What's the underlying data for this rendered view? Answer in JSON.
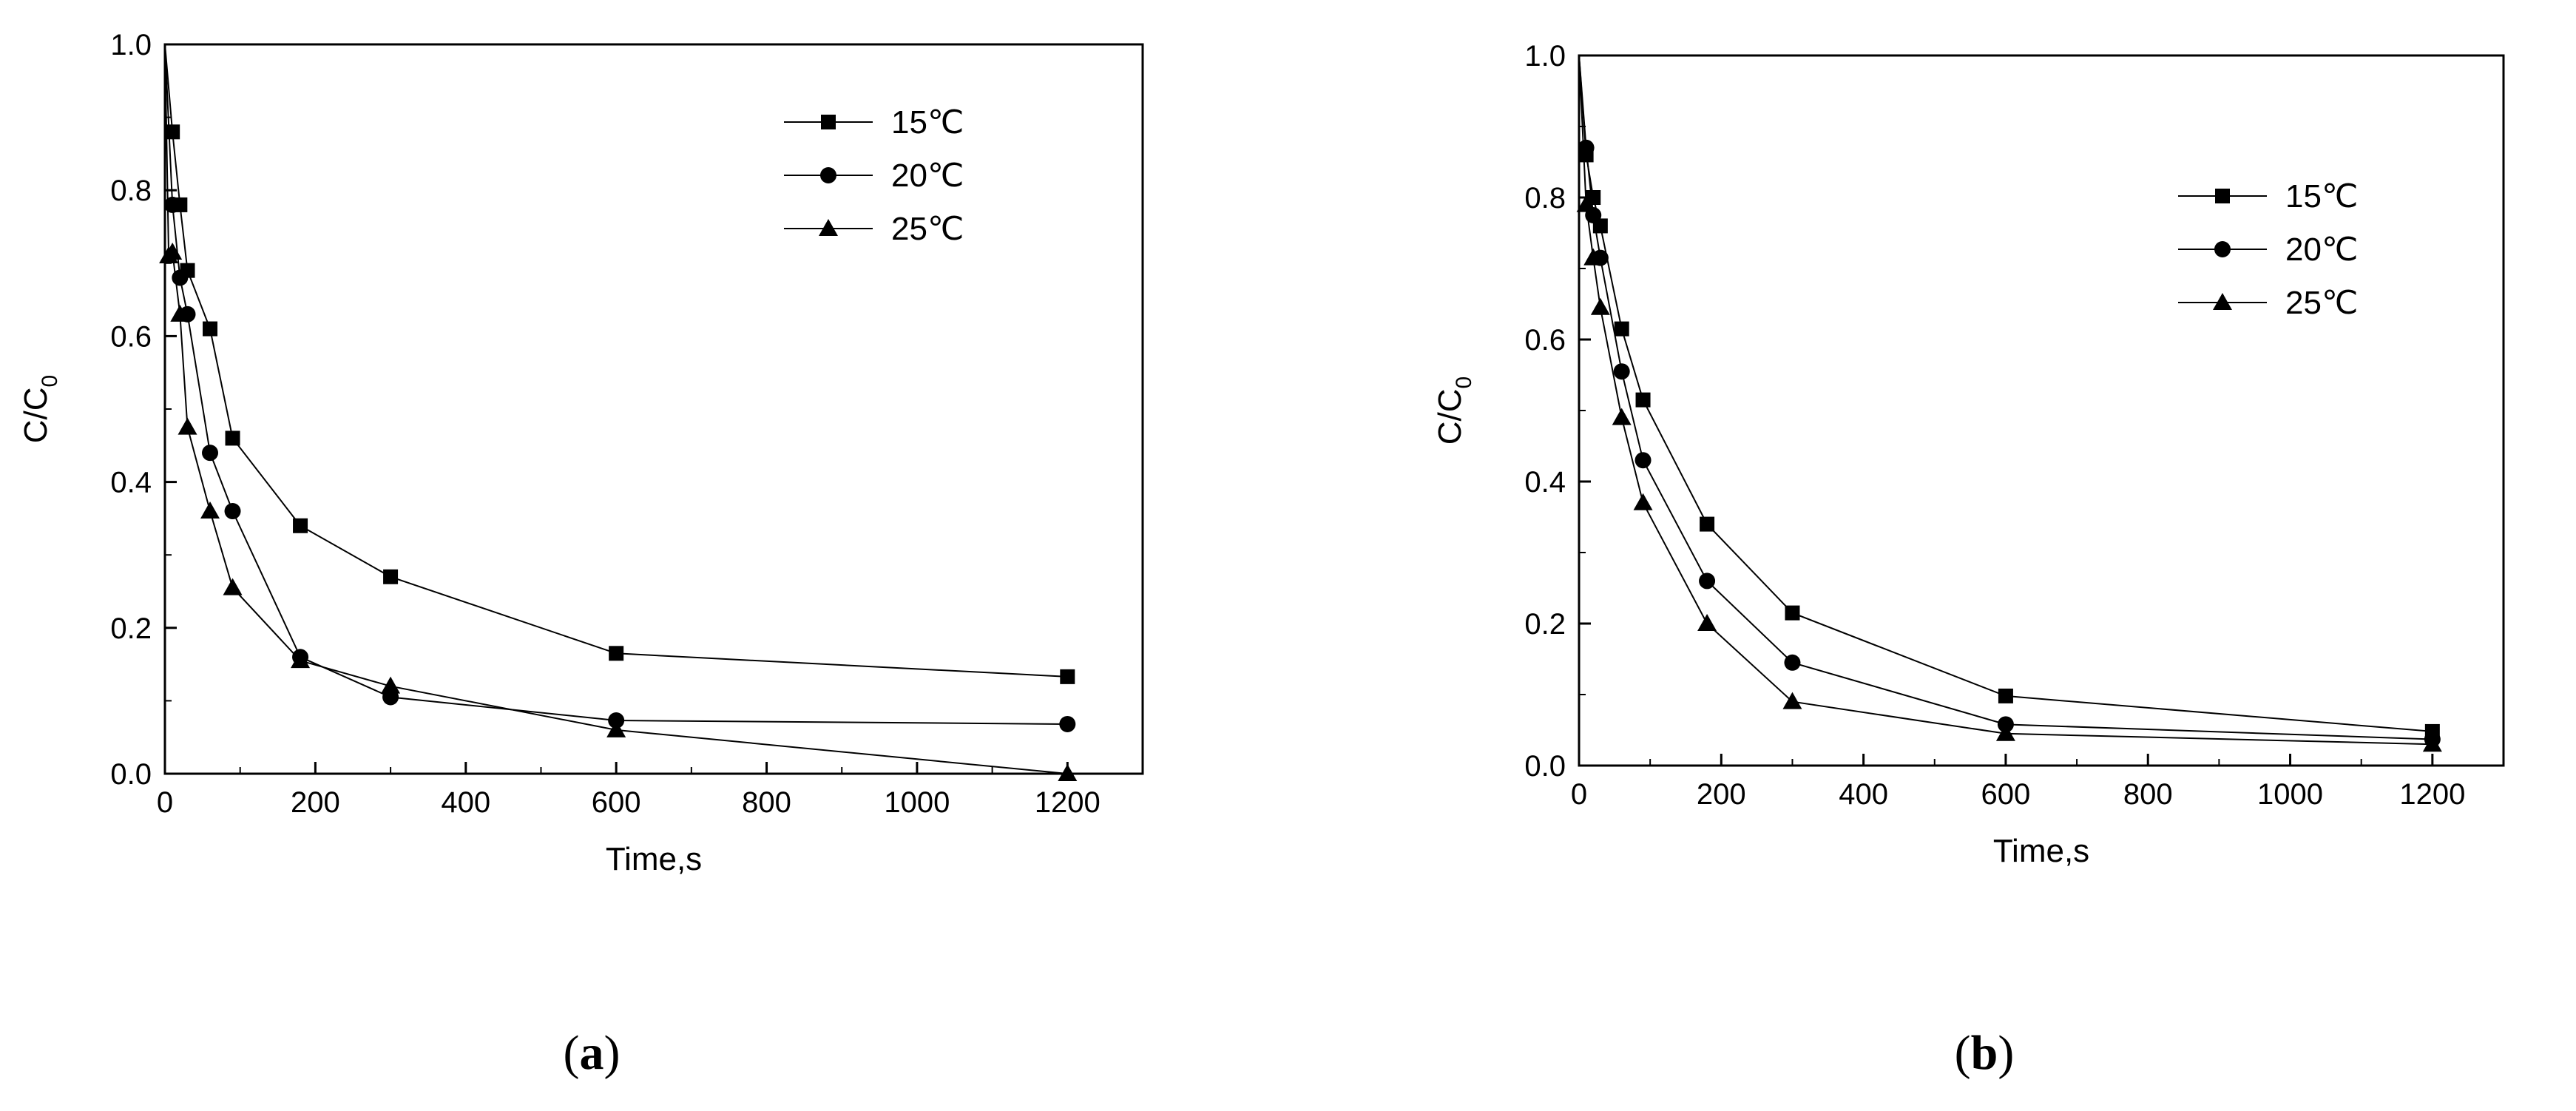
{
  "chart_data": [
    {
      "type": "line",
      "panel_label": "a",
      "xlabel": "Time,s",
      "ylabel": "C/C",
      "ylabel_subscript": "0",
      "xlim": [
        0,
        1300
      ],
      "ylim": [
        0.0,
        1.0
      ],
      "xticks": [
        0,
        200,
        400,
        600,
        800,
        1000,
        1200
      ],
      "yticks": [
        0.0,
        0.2,
        0.4,
        0.6,
        0.8,
        1.0
      ],
      "xtick_labels": [
        "0",
        "200",
        "400",
        "600",
        "800",
        "1000",
        "1200"
      ],
      "ytick_labels": [
        "0.0",
        "0.2",
        "0.4",
        "0.6",
        "0.8",
        "1.0"
      ],
      "grid": false,
      "legend_position": "top-right",
      "series": [
        {
          "name": "15℃",
          "marker": "square",
          "x": [
            0,
            10,
            20,
            30,
            60,
            90,
            180,
            300,
            600,
            1200
          ],
          "y": [
            1.0,
            0.88,
            0.78,
            0.69,
            0.61,
            0.46,
            0.34,
            0.27,
            0.165,
            0.133
          ]
        },
        {
          "name": "20℃",
          "marker": "circle",
          "x": [
            0,
            10,
            20,
            30,
            60,
            90,
            180,
            300,
            600,
            1200
          ],
          "y": [
            1.0,
            0.78,
            0.68,
            0.63,
            0.44,
            0.36,
            0.16,
            0.105,
            0.073,
            0.068
          ]
        },
        {
          "name": "25℃",
          "marker": "triangle",
          "x": [
            0,
            5,
            10,
            20,
            30,
            60,
            90,
            180,
            300,
            600,
            1200
          ],
          "y": [
            1.0,
            0.71,
            0.715,
            0.63,
            0.475,
            0.36,
            0.255,
            0.155,
            0.12,
            0.06,
            0.0
          ]
        }
      ]
    },
    {
      "type": "line",
      "panel_label": "b",
      "xlabel": "Time,s",
      "ylabel": "C/C",
      "ylabel_subscript": "0",
      "xlim": [
        0,
        1300
      ],
      "ylim": [
        0.0,
        1.0
      ],
      "xticks": [
        0,
        200,
        400,
        600,
        800,
        1000,
        1200
      ],
      "yticks": [
        0.0,
        0.2,
        0.4,
        0.6,
        0.8,
        1.0
      ],
      "xtick_labels": [
        "0",
        "200",
        "400",
        "600",
        "800",
        "1000",
        "1200"
      ],
      "ytick_labels": [
        "0.0",
        "0.2",
        "0.4",
        "0.6",
        "0.8",
        "1.0"
      ],
      "grid": false,
      "legend_position": "top-right",
      "series": [
        {
          "name": "15℃",
          "marker": "square",
          "x": [
            0,
            10,
            20,
            30,
            60,
            90,
            180,
            300,
            600,
            1200
          ],
          "y": [
            1.0,
            0.86,
            0.8,
            0.76,
            0.615,
            0.515,
            0.34,
            0.215,
            0.098,
            0.048
          ]
        },
        {
          "name": "20℃",
          "marker": "circle",
          "x": [
            0,
            10,
            20,
            30,
            60,
            90,
            180,
            300,
            600,
            1200
          ],
          "y": [
            1.0,
            0.87,
            0.775,
            0.715,
            0.555,
            0.43,
            0.26,
            0.145,
            0.058,
            0.037
          ]
        },
        {
          "name": "25℃",
          "marker": "triangle",
          "x": [
            0,
            10,
            20,
            30,
            60,
            90,
            180,
            300,
            600,
            1200
          ],
          "y": [
            1.0,
            0.79,
            0.715,
            0.645,
            0.49,
            0.37,
            0.2,
            0.09,
            0.045,
            0.03
          ]
        }
      ]
    }
  ],
  "captions": [
    {
      "open": "(",
      "label": "a",
      "close": ")"
    },
    {
      "open": "(",
      "label": "b",
      "close": ")"
    }
  ]
}
